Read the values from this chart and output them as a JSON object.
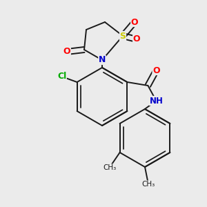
{
  "background_color": "#ebebeb",
  "bond_color": "#1a1a1a",
  "bond_width": 1.4,
  "atom_colors": {
    "O": "#ff0000",
    "N": "#0000cc",
    "S": "#cccc00",
    "Cl": "#00aa00",
    "C": "#1a1a1a",
    "H": "#555555"
  },
  "figsize": [
    3.0,
    3.0
  ],
  "dpi": 100,
  "xlim": [
    0,
    300
  ],
  "ylim": [
    0,
    300
  ]
}
